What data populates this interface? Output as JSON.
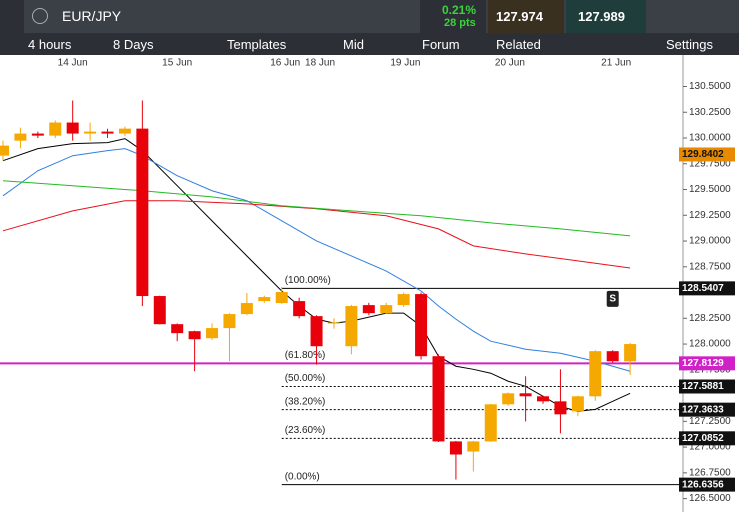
{
  "header": {
    "symbol": "EUR/JPY",
    "change": "0.21%",
    "points": "28 pts",
    "sell": "127.974",
    "buy": "127.989"
  },
  "menu": [
    "4 hours",
    "8 Days",
    "Templates",
    "Mid",
    "Forum",
    "Related",
    "Settings"
  ],
  "chart_data": {
    "type": "candlestick",
    "ylim": [
      126.37,
      130.66
    ],
    "yticks": [
      {
        "value": 130.5,
        "label": "130.5000"
      },
      {
        "value": 130.25,
        "label": "130.2500"
      },
      {
        "value": 130.0,
        "label": "130.0000"
      },
      {
        "value": 129.75,
        "label": "129.7500"
      },
      {
        "value": 129.5,
        "label": "129.5000"
      },
      {
        "value": 129.25,
        "label": "129.2500"
      },
      {
        "value": 129.0,
        "label": "129.0000"
      },
      {
        "value": 128.75,
        "label": "128.7500"
      },
      {
        "value": 128.25,
        "label": "128.2500"
      },
      {
        "value": 128.0,
        "label": "128.0000"
      },
      {
        "value": 127.75,
        "label": "127.7500"
      },
      {
        "value": 127.25,
        "label": "127.2500"
      },
      {
        "value": 127.0,
        "label": "127.0000"
      },
      {
        "value": 126.75,
        "label": "126.7500"
      },
      {
        "value": 126.5,
        "label": "126.5000"
      }
    ],
    "x_labels": [
      {
        "value": 4,
        "label": "14 Jun"
      },
      {
        "value": 10,
        "label": "15 Jun"
      },
      {
        "value": 16.2,
        "label": "16 Jun"
      },
      {
        "value": 18.2,
        "label": "18 Jun"
      },
      {
        "value": 23.1,
        "label": "19 Jun"
      },
      {
        "value": 29.1,
        "label": "20 Jun"
      },
      {
        "value": 35.2,
        "label": "21 Jun"
      }
    ],
    "up_color": "#f5a800",
    "down_color": "#e8000b",
    "candles": [
      {
        "open": 129.829,
        "close": 129.926,
        "high": 129.974,
        "low": 129.78
      },
      {
        "open": 129.974,
        "close": 130.043,
        "high": 130.1,
        "low": 129.9
      },
      {
        "open": 130.043,
        "close": 130.023,
        "high": 130.062,
        "low": 130.0
      },
      {
        "open": 130.023,
        "close": 130.15,
        "high": 130.17,
        "low": 130.0
      },
      {
        "open": 130.15,
        "close": 130.043,
        "high": 130.364,
        "low": 129.974
      },
      {
        "open": 130.043,
        "close": 130.062,
        "high": 130.15,
        "low": 129.974
      },
      {
        "open": 130.062,
        "close": 130.043,
        "high": 130.09,
        "low": 130.0
      },
      {
        "open": 130.043,
        "close": 130.091,
        "high": 130.11,
        "low": 130.02
      },
      {
        "open": 130.091,
        "close": 128.466,
        "high": 130.364,
        "low": 128.369
      },
      {
        "open": 128.466,
        "close": 128.193,
        "high": 128.47,
        "low": 128.19
      },
      {
        "open": 128.193,
        "close": 128.106,
        "high": 128.2,
        "low": 128.028
      },
      {
        "open": 128.125,
        "close": 128.047,
        "high": 128.13,
        "low": 127.736
      },
      {
        "open": 128.057,
        "close": 128.155,
        "high": 128.2,
        "low": 128.04
      },
      {
        "open": 128.155,
        "close": 128.291,
        "high": 128.3,
        "low": 127.833
      },
      {
        "open": 128.291,
        "close": 128.398,
        "high": 128.495,
        "low": 128.28
      },
      {
        "open": 128.417,
        "close": 128.456,
        "high": 128.47,
        "low": 128.4
      },
      {
        "open": 128.398,
        "close": 128.505,
        "high": 128.554,
        "low": 128.39
      },
      {
        "open": 128.417,
        "close": 128.271,
        "high": 128.45,
        "low": 128.25
      },
      {
        "open": 128.271,
        "close": 127.979,
        "high": 128.28,
        "low": 127.8
      },
      {
        "open": 128.2,
        "close": 128.21,
        "high": 128.25,
        "low": 128.15
      },
      {
        "open": 127.979,
        "close": 128.369,
        "high": 128.38,
        "low": 127.9
      },
      {
        "open": 128.378,
        "close": 128.3,
        "high": 128.4,
        "low": 128.28
      },
      {
        "open": 128.3,
        "close": 128.378,
        "high": 128.4,
        "low": 128.29
      },
      {
        "open": 128.378,
        "close": 128.485,
        "high": 128.5,
        "low": 128.36
      },
      {
        "open": 128.485,
        "close": 127.882,
        "high": 128.5,
        "low": 127.85
      },
      {
        "open": 127.882,
        "close": 127.055,
        "high": 127.9,
        "low": 127.05
      },
      {
        "open": 127.055,
        "close": 126.928,
        "high": 127.06,
        "low": 126.685
      },
      {
        "open": 126.957,
        "close": 127.055,
        "high": 127.06,
        "low": 126.763
      },
      {
        "open": 127.055,
        "close": 127.415,
        "high": 127.42,
        "low": 127.05
      },
      {
        "open": 127.415,
        "close": 127.522,
        "high": 127.53,
        "low": 127.4
      },
      {
        "open": 127.522,
        "close": 127.493,
        "high": 127.687,
        "low": 127.249
      },
      {
        "open": 127.493,
        "close": 127.444,
        "high": 127.5,
        "low": 127.42
      },
      {
        "open": 127.444,
        "close": 127.318,
        "high": 127.755,
        "low": 127.133
      },
      {
        "open": 127.347,
        "close": 127.493,
        "high": 127.5,
        "low": 127.3
      },
      {
        "open": 127.493,
        "close": 127.931,
        "high": 127.94,
        "low": 127.45
      },
      {
        "open": 127.931,
        "close": 127.833,
        "high": 127.94,
        "low": 127.82
      },
      {
        "open": 127.833,
        "close": 128.0,
        "high": 128.01,
        "low": 127.7
      }
    ],
    "series": [
      {
        "color": "#000000",
        "x": [
          0,
          2,
          4,
          6,
          7,
          8,
          10,
          12,
          14,
          16,
          17,
          18,
          19,
          20,
          22,
          23,
          24,
          25,
          26,
          27,
          28,
          29,
          30,
          31,
          32,
          33,
          34,
          35,
          36
        ],
        "values": [
          129.78,
          129.897,
          129.945,
          129.955,
          129.994,
          129.877,
          129.537,
          129.196,
          128.855,
          128.515,
          128.369,
          128.242,
          128.203,
          128.223,
          128.3,
          128.3,
          128.174,
          127.882,
          127.785,
          127.755,
          127.717,
          127.639,
          127.59,
          127.493,
          127.395,
          127.347,
          127.366,
          127.444,
          127.522
        ]
      },
      {
        "color": "#2f7fe0",
        "x": [
          0,
          2,
          4,
          6,
          7,
          8,
          10,
          12,
          14,
          16,
          18,
          20,
          22,
          24,
          25,
          26,
          27,
          28,
          30,
          32,
          34,
          36
        ],
        "values": [
          129.439,
          129.682,
          129.828,
          129.877,
          129.897,
          129.828,
          129.634,
          129.488,
          129.391,
          129.196,
          129.001,
          128.855,
          128.709,
          128.515,
          128.369,
          128.242,
          128.125,
          128.028,
          127.95,
          127.911,
          127.833,
          127.736
        ]
      },
      {
        "color": "#e8101a",
        "x": [
          0,
          4,
          7,
          10,
          14,
          18,
          22,
          25,
          27,
          30,
          33,
          36
        ],
        "values": [
          129.099,
          129.293,
          129.391,
          129.391,
          129.361,
          129.313,
          129.245,
          129.118,
          128.953,
          128.875,
          128.807,
          128.738
        ]
      },
      {
        "color": "#22bb22",
        "x": [
          0,
          4,
          8,
          12,
          16,
          20,
          24,
          28,
          32,
          36
        ],
        "values": [
          129.585,
          129.537,
          129.488,
          129.429,
          129.342,
          129.293,
          129.245,
          129.176,
          129.118,
          129.05
        ]
      }
    ],
    "fib_start": 16,
    "fib": [
      {
        "name": "(100.00%)",
        "value": 128.5407,
        "value_label": "128.5407"
      },
      {
        "name": "(61.80%)",
        "value": 127.8129,
        "value_label": "127.8129"
      },
      {
        "name": "(50.00%)",
        "value": 127.5881,
        "value_label": "127.5881"
      },
      {
        "name": "(38.20%)",
        "value": 127.3633,
        "value_label": "127.3633"
      },
      {
        "name": "(23.60%)",
        "value": 127.0852,
        "value_label": "127.0852"
      },
      {
        "name": "(0.00%)",
        "value": 126.6356,
        "value_label": "126.6356"
      }
    ],
    "price_line": {
      "value": 127.8129,
      "color": "#d020c8"
    },
    "indicator_tag": {
      "value": 129.8402,
      "label": "129.8402",
      "color": "#e88a00"
    },
    "signal": {
      "x": 35,
      "label": "S"
    }
  }
}
